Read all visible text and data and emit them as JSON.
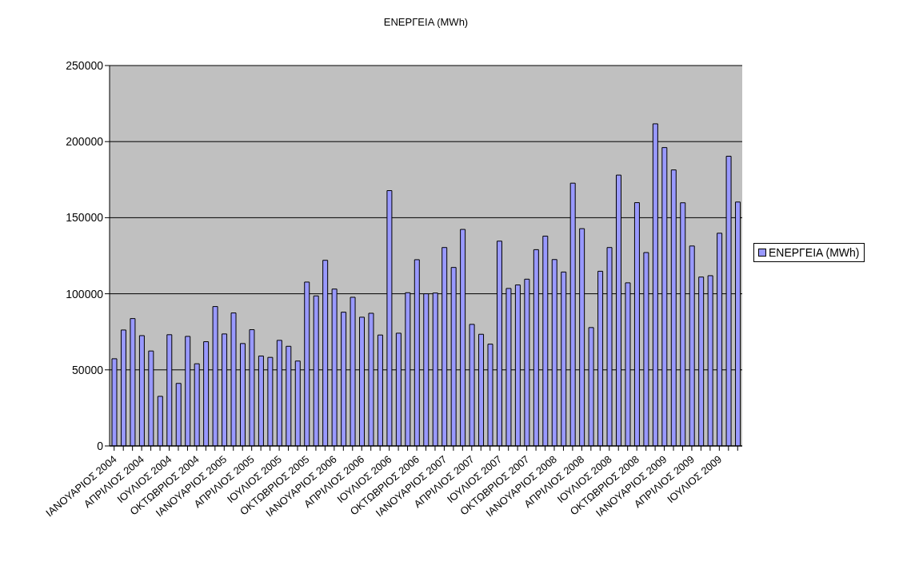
{
  "chart_data": {
    "type": "bar",
    "title": "ΕΝΕΡΓΕΙΑ (MWh)",
    "categories": [
      "ΙΑΝΟΥΑΡΙΟΣ 2004",
      null,
      null,
      "ΑΠΡΙΛΙΟΣ 2004",
      null,
      null,
      "ΙΟΥΛΙΟΣ 2004",
      null,
      null,
      "ΟΚΤΩΒΡΙΟΣ 2004",
      null,
      null,
      "ΙΑΝΟΥΑΡΙΟΣ 2005",
      null,
      null,
      "ΑΠΡΙΛΙΟΣ 2005",
      null,
      null,
      "ΙΟΥΛΙΟΣ 2005",
      null,
      null,
      "ΟΚΤΩΒΡΙΟΣ 2005",
      null,
      null,
      "ΙΑΝΟΥΑΡΙΟΣ 2006",
      null,
      null,
      "ΑΠΡΙΛΙΟΣ 2006",
      null,
      null,
      "ΙΟΥΛΙΟΣ 2006",
      null,
      null,
      "ΟΚΤΩΒΡΙΟΣ 2006",
      null,
      null,
      "ΙΑΝΟΥΑΡΙΟΣ 2007",
      null,
      null,
      "ΑΠΡΙΛΙΟΣ 2007",
      null,
      null,
      "ΙΟΥΛΙΟΣ 2007",
      null,
      null,
      "ΟΚΤΩΒΡΙΟΣ 2007",
      null,
      null,
      "ΙΑΝΟΥΑΡΙΟΣ 2008",
      null,
      null,
      "ΑΠΡΙΛΙΟΣ 2008",
      null,
      null,
      "ΙΟΥΛΙΟΣ 2008",
      null,
      null,
      "ΟΚΤΩΒΡΙΟΣ 2008",
      null,
      null,
      "ΙΑΝΟΥΑΡΙΟΣ 2009",
      null,
      null,
      "ΑΠΡΙΛΙΟΣ 2009",
      null,
      null,
      "ΙΟΥΛΙΟΣ 2009",
      null,
      null
    ],
    "series": [
      {
        "name": "ΕΝΕΡΓΕΙΑ (MWh)",
        "color": "#9999ff",
        "values": [
          57300,
          76200,
          83700,
          72500,
          62400,
          32600,
          73100,
          41100,
          72000,
          54000,
          68500,
          91600,
          73600,
          87400,
          67300,
          76400,
          59100,
          58200,
          69400,
          65500,
          55800,
          107700,
          98600,
          122000,
          103100,
          87900,
          97700,
          84600,
          87200,
          72900,
          167800,
          74100,
          100700,
          122400,
          100000,
          100500,
          130400,
          117300,
          142300,
          79900,
          73400,
          66900,
          134600,
          103500,
          105800,
          109600,
          129000,
          137900,
          122500,
          114300,
          172700,
          142800,
          77800,
          114800,
          130400,
          178000,
          107200,
          159900,
          127100,
          211700,
          196100,
          181400,
          159800,
          131400,
          111000,
          111900,
          139800,
          190400,
          160300
        ]
      }
    ],
    "ylim": [
      0,
      250000
    ],
    "yticks": [
      0,
      50000,
      100000,
      150000,
      200000,
      250000
    ],
    "grid": "y",
    "legend": "right"
  }
}
